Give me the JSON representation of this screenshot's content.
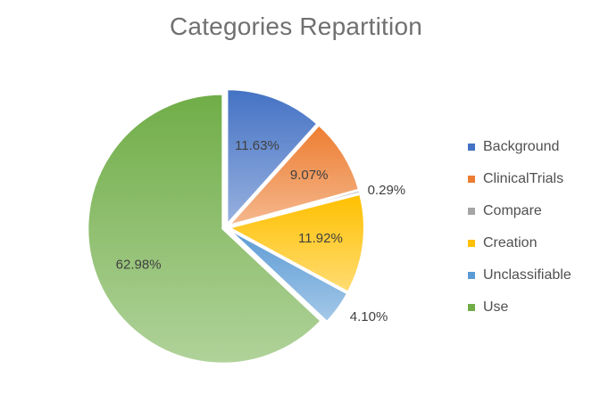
{
  "chart_data": {
    "type": "pie",
    "title": "Categories Repartition",
    "categories": [
      "Background",
      "ClinicalTrials",
      "Compare",
      "Creation",
      "Unclassifiable",
      "Use"
    ],
    "values": [
      11.63,
      9.07,
      0.29,
      11.92,
      4.1,
      62.98
    ],
    "value_labels": [
      "11.63%",
      "9.07%",
      "0.29%",
      "11.92%",
      "4.10%",
      "62.98%"
    ],
    "colors": [
      "#4472c4",
      "#ed7d31",
      "#a5a5a5",
      "#ffc000",
      "#5b9bd5",
      "#70ad47"
    ],
    "legend_position": "right"
  }
}
